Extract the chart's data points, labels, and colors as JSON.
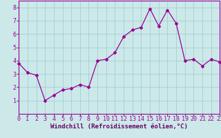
{
  "x": [
    0,
    1,
    2,
    3,
    4,
    5,
    6,
    7,
    8,
    9,
    10,
    11,
    12,
    13,
    14,
    15,
    16,
    17,
    18,
    19,
    20,
    21,
    22,
    23
  ],
  "y": [
    3.8,
    3.1,
    2.9,
    1.0,
    1.4,
    1.8,
    1.9,
    2.2,
    2.0,
    4.0,
    4.1,
    4.6,
    5.8,
    6.3,
    6.5,
    7.9,
    6.6,
    7.8,
    6.8,
    4.0,
    4.1,
    3.6,
    4.1,
    3.9
  ],
  "line_color": "#990099",
  "marker": "D",
  "marker_size": 2.0,
  "bg_color": "#cce8e8",
  "grid_color": "#99cccc",
  "xlabel": "Windchill (Refroidissement éolien,°C)",
  "xlabel_color": "#660066",
  "xlabel_fontsize": 6.5,
  "ylim": [
    0,
    8.5
  ],
  "xlim": [
    0,
    23
  ],
  "yticks": [
    1,
    2,
    3,
    4,
    5,
    6,
    7,
    8
  ],
  "xtick_labels": [
    "0",
    "1",
    "2",
    "3",
    "4",
    "5",
    "6",
    "7",
    "8",
    "9",
    "10",
    "11",
    "12",
    "13",
    "14",
    "15",
    "16",
    "17",
    "18",
    "19",
    "20",
    "21",
    "22",
    "23"
  ],
  "tick_fontsize": 6.0,
  "axis_bg_color": "#cce8e8",
  "spine_color": "#990099",
  "linewidth": 0.9
}
